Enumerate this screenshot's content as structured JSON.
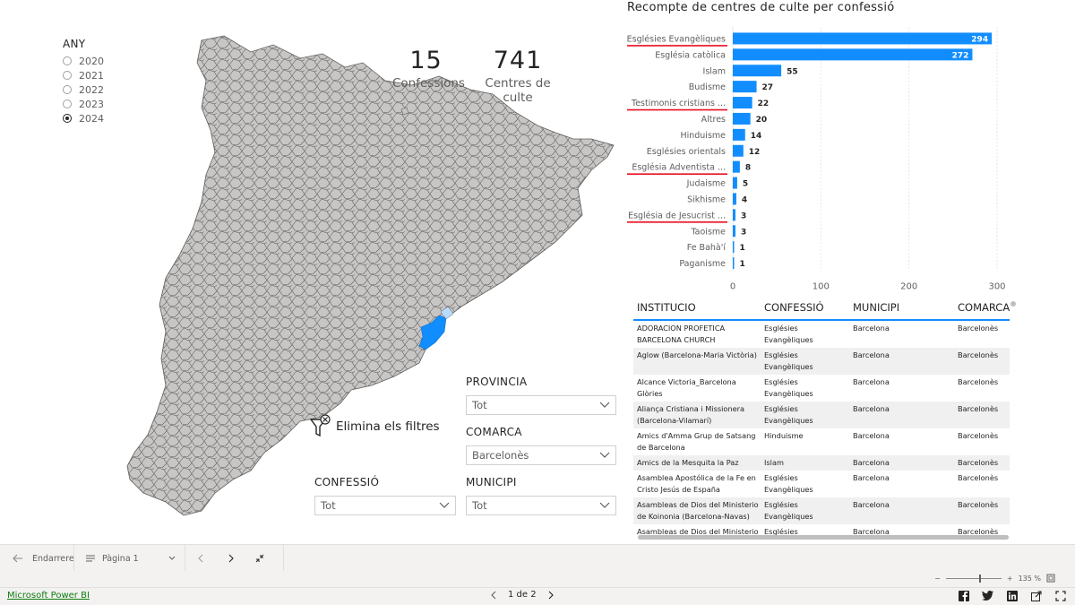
{
  "year_slicer": {
    "title": "ANY",
    "options": [
      {
        "label": "2020",
        "checked": false
      },
      {
        "label": "2021",
        "checked": false
      },
      {
        "label": "2022",
        "checked": false
      },
      {
        "label": "2023",
        "checked": false
      },
      {
        "label": "2024",
        "checked": true
      }
    ]
  },
  "kpis": {
    "confessions": {
      "value": "15",
      "label": "Confessions"
    },
    "centres": {
      "value": "741",
      "label": "Centres de culte"
    }
  },
  "clear_filters": {
    "label": "Elimina els filtres",
    "icon": "filter-clear-icon"
  },
  "slicers": {
    "provincia": {
      "title": "PROVINCIA",
      "value": "Tot"
    },
    "comarca": {
      "title": "COMARCA",
      "value": "Barcelonès"
    },
    "confessio": {
      "title": "CONFESSIÓ",
      "value": "Tot"
    },
    "municipi": {
      "title": "MUNICIPI",
      "value": "Tot"
    }
  },
  "map": {
    "region_fill": "#c8c6c4",
    "border": "#605e5c",
    "highlight": "#118dff",
    "highlight_light": "#b8dcff"
  },
  "chart_data": {
    "type": "bar",
    "orientation": "horizontal",
    "title": "Recompte de centres de culte per confessió",
    "categories": [
      "Esglésies Evangèliques",
      "Església catòlica",
      "Islam",
      "Budisme",
      "Testimonis cristians ...",
      "Altres",
      "Hinduisme",
      "Esglésies orientals",
      "Església Adventista ...",
      "Judaisme",
      "Sikhisme",
      "Església de Jesucrist ...",
      "Taoisme",
      "Fe Bahà'í",
      "Paganisme"
    ],
    "values": [
      294,
      272,
      55,
      27,
      22,
      20,
      14,
      12,
      8,
      5,
      4,
      3,
      3,
      1,
      1
    ],
    "underlined": [
      true,
      false,
      false,
      false,
      true,
      false,
      false,
      false,
      true,
      false,
      false,
      true,
      false,
      false,
      false
    ],
    "xticks": [
      0,
      100,
      200,
      300
    ],
    "xlim": [
      0,
      300
    ],
    "grid": true,
    "bar_color": "#118dff",
    "underline_color": "#e81123"
  },
  "table": {
    "headers": [
      "INSTITUCIO",
      "CONFESSIÓ",
      "MUNICIPI",
      "COMARCA"
    ],
    "rows": [
      [
        "ADORACION PROFETICA BARCELONA CHURCH",
        "Esglésies Evangèliques",
        "Barcelona",
        "Barcelonès"
      ],
      [
        "Aglow (Barcelona-Maria Victòria)",
        "Esglésies Evangèliques",
        "Barcelona",
        "Barcelonès"
      ],
      [
        "Alcance Victoria_Barcelona Glòries",
        "Esglésies Evangèliques",
        "Barcelona",
        "Barcelonès"
      ],
      [
        "Aliança Cristiana i Missionera (Barcelona-Vilamarí)",
        "Esglésies Evangèliques",
        "Barcelona",
        "Barcelonès"
      ],
      [
        "Amics d'Amma Grup de Satsang de Barcelona",
        "Hinduisme",
        "Barcelona",
        "Barcelonès"
      ],
      [
        "Amics de la Mesquita la Paz",
        "Islam",
        "Barcelona",
        "Barcelonès"
      ],
      [
        "Asamblea Apostólica de la Fe en Cristo Jesús de España",
        "Esglésies Evangèliques",
        "Barcelona",
        "Barcelonès"
      ],
      [
        "Asambleas de Dios del Ministerio de Koinonia (Barcelona-Navas)",
        "Esglésies Evangèliques",
        "Barcelona",
        "Barcelonès"
      ],
      [
        "Asambleas de Dios del Ministerio de Koinonia (Barcelona-Santa Engràcia)",
        "Esglésies Evangèliques",
        "Barcelona",
        "Barcelonès"
      ]
    ]
  },
  "navbar": {
    "back_label": "Endarrere",
    "page_label": "Pàgina 1"
  },
  "zoom": {
    "label": "135 %"
  },
  "footer": {
    "link": "Microsoft Power BI",
    "pager": "1 de 2",
    "socials": [
      "facebook-icon",
      "twitter-icon",
      "linkedin-icon",
      "share-icon",
      "fullscreen-icon"
    ]
  }
}
